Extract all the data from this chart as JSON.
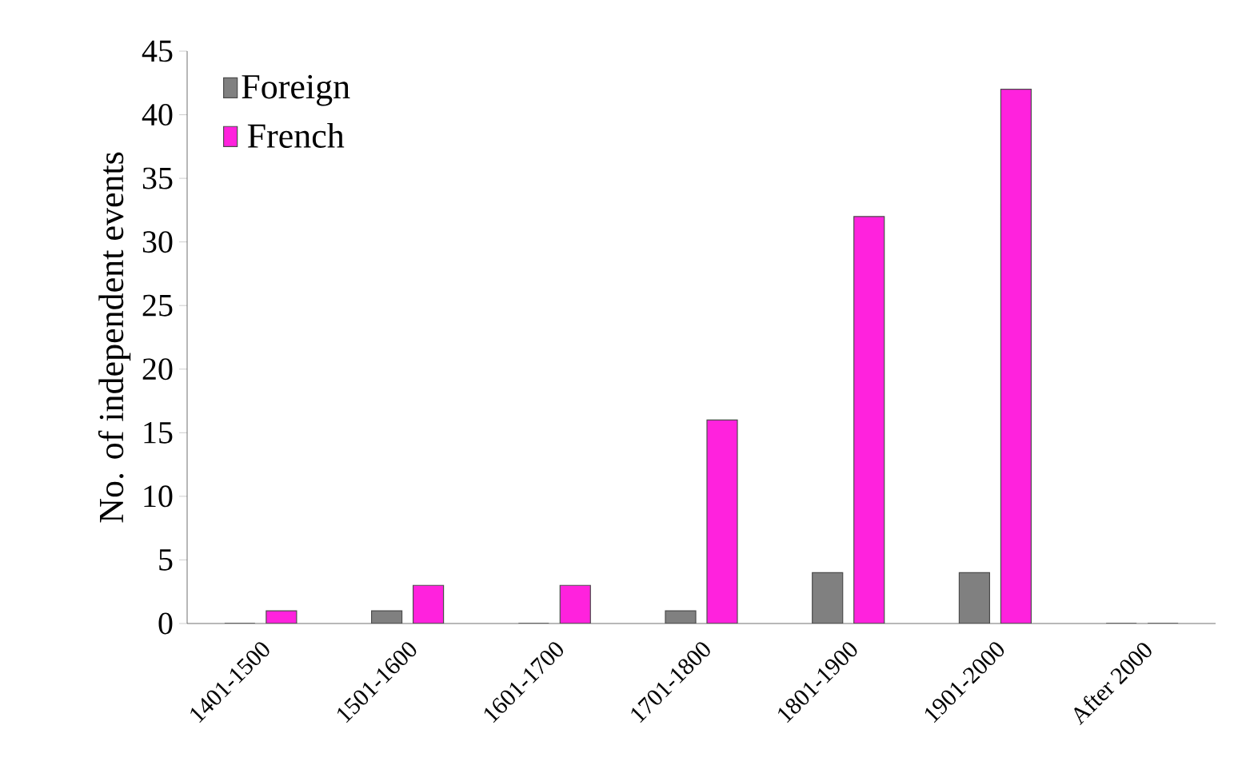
{
  "chart_data": {
    "type": "bar",
    "ylabel": "No. of independent events",
    "categories": [
      "1401-1500",
      "1501-1600",
      "1601-1700",
      "1701-1800",
      "1801-1900",
      "1901-2000",
      "After 2000"
    ],
    "series": [
      {
        "name": "Foreign",
        "color": "#808080",
        "values": [
          0,
          1,
          0,
          1,
          4,
          4,
          0
        ]
      },
      {
        "name": "French",
        "color": "#ff22dd",
        "values": [
          1,
          3,
          3,
          16,
          32,
          42,
          0
        ]
      }
    ],
    "ylim": [
      0,
      45
    ],
    "yticks": [
      0,
      5,
      10,
      15,
      20,
      25,
      30,
      35,
      40,
      45
    ],
    "grid": false,
    "legend": "top left"
  }
}
